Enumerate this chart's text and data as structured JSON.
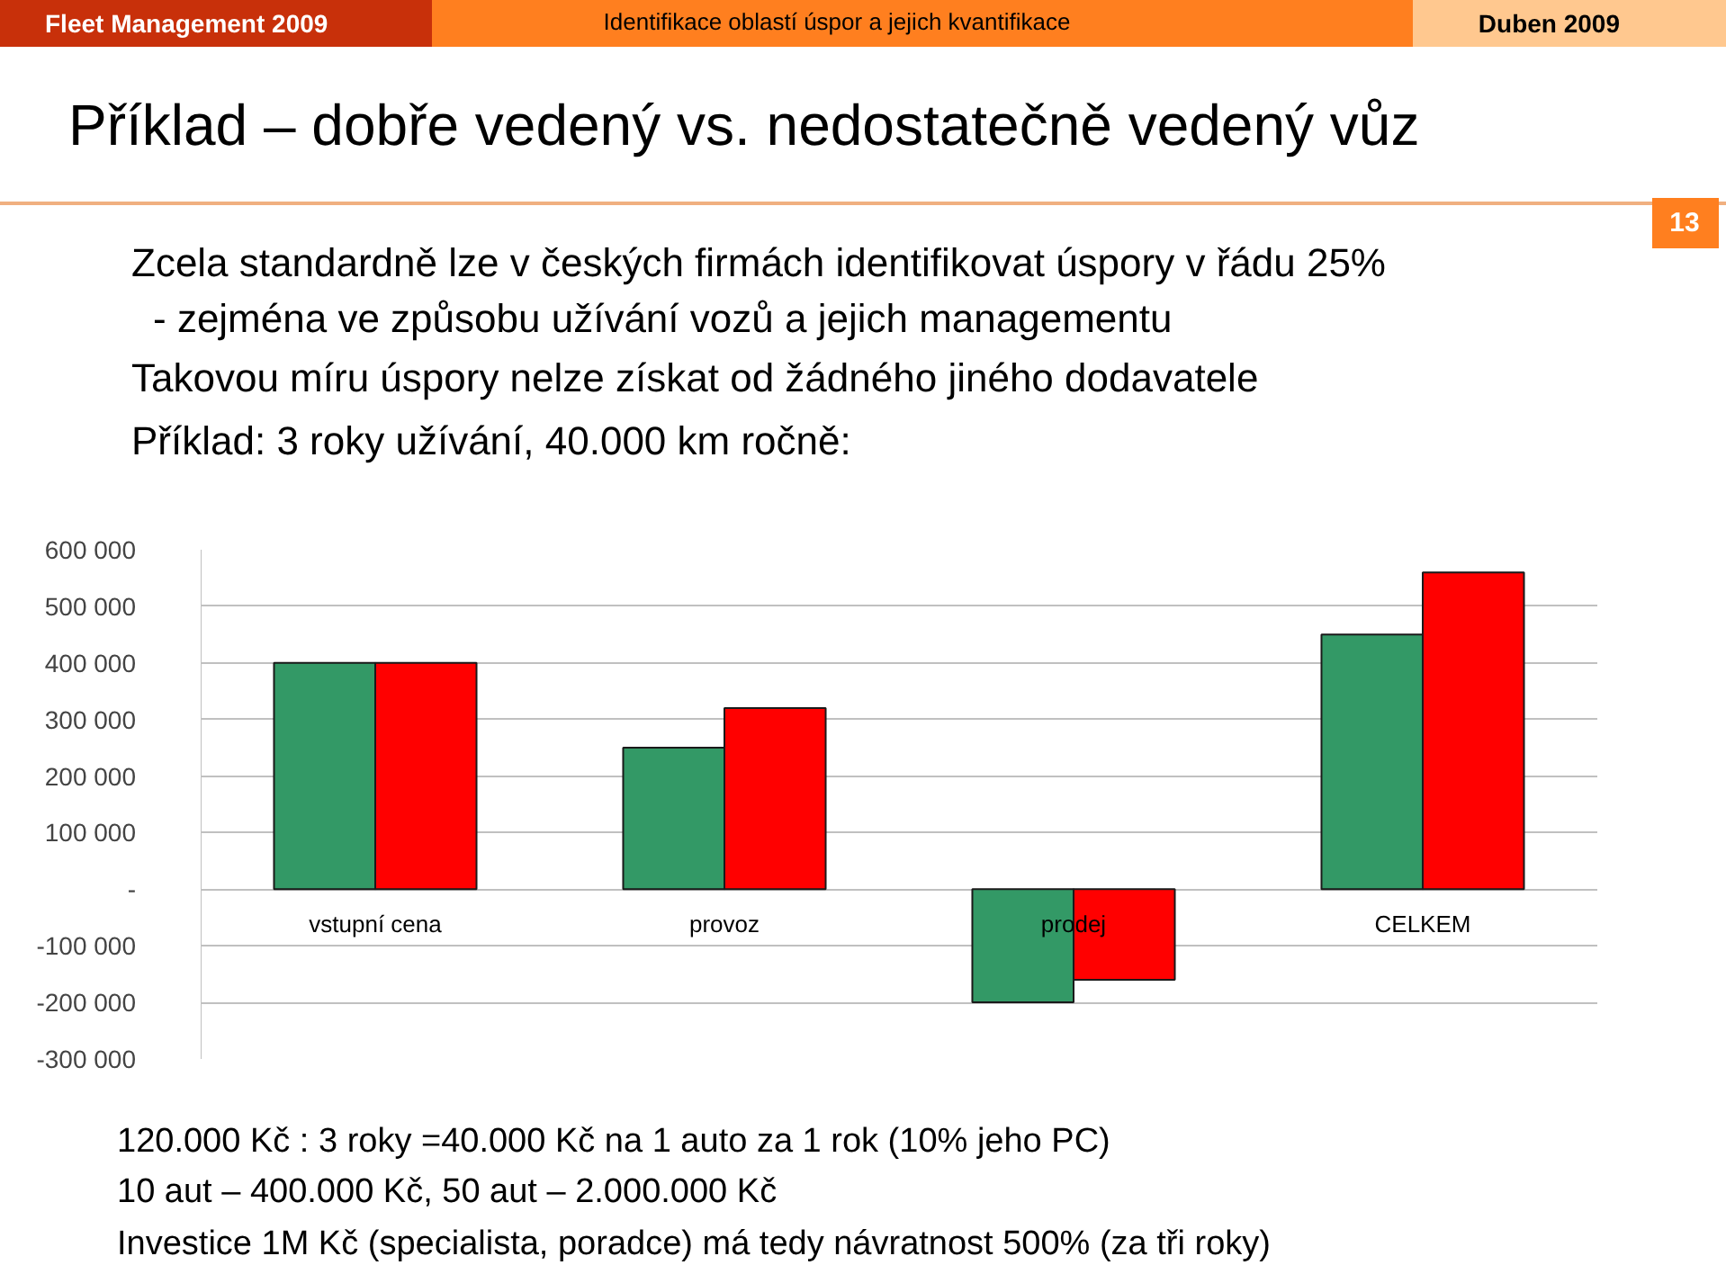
{
  "chart_data": {
    "type": "bar",
    "title": "Příklad – dobře vedený vs. nedostatečně vedený vůz",
    "categories": [
      "vstupní cena",
      "provoz",
      "prodej",
      "CELKEM"
    ],
    "series": [
      {
        "color": "#339966",
        "values": [
          400000,
          250000,
          -200000,
          450000
        ]
      },
      {
        "color": "#ff0000",
        "values": [
          400000,
          320000,
          -160000,
          560000
        ]
      }
    ],
    "ylim": [
      -300000,
      600000
    ],
    "yticks": [
      {
        "value": -300000,
        "label": "-300 000"
      },
      {
        "value": -200000,
        "label": "-200 000"
      },
      {
        "value": -100000,
        "label": "-100 000"
      },
      {
        "value": 0,
        "label": "-"
      },
      {
        "value": 100000,
        "label": "100 000"
      },
      {
        "value": 200000,
        "label": "200 000"
      },
      {
        "value": 300000,
        "label": "300 000"
      },
      {
        "value": 400000,
        "label": "400 000"
      },
      {
        "value": 500000,
        "label": "500 000"
      },
      {
        "value": 600000,
        "label": "600 000"
      }
    ],
    "grid": "y",
    "annotations": [
      "Fleet Management 2009",
      "Identifikace oblastí úspor a jejich kvantifikace",
      "Duben  2009",
      "13",
      "Zcela standardně lze v českých firmách identifikovat úspory v řádu 25%",
      "- zejména ve způsobu užívání vozů a jejich managementu",
      "Takovou míru úspory nelze získat od žádného jiného dodavatele",
      "Příklad: 3 roky užívání, 40.000 km ročně:",
      "120.000 Kč : 3 roky =40.000 Kč na 1 auto za 1 rok (10% jeho PC)",
      "10 aut – 400.000 Kč, 50 aut – 2.000.000 Kč",
      "Investice 1M Kč (specialista, poradce) má tedy návratnost 500% (za tři roky)"
    ]
  }
}
